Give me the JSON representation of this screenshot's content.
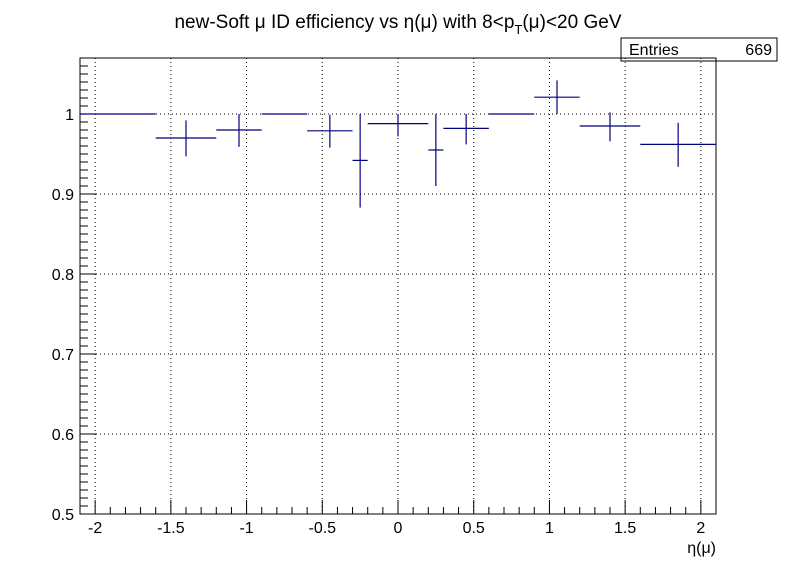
{
  "stats_box": {
    "label": "Entries",
    "value": "669"
  },
  "chart_data": {
    "type": "scatter",
    "style": "error-bars",
    "title_parts": {
      "prefix": "new-Soft μ ID efficiency vs η(μ) with 8<p",
      "subscript": "T",
      "suffix": "(μ)<20 GeV"
    },
    "xlabel": "η(μ)",
    "ylabel": "",
    "xlim": [
      -2.1,
      2.1
    ],
    "ylim": [
      0.5,
      1.07
    ],
    "x_ticks": [
      -2,
      -1.5,
      -1,
      -0.5,
      0,
      0.5,
      1,
      1.5,
      2
    ],
    "x_tick_labels": [
      "-2",
      "-1.5",
      "-1",
      "-0.5",
      "0",
      "0.5",
      "1",
      "1.5",
      "2"
    ],
    "y_ticks": [
      0.5,
      0.6,
      0.7,
      0.8,
      0.9,
      1.0
    ],
    "y_tick_labels": [
      "0.5",
      "0.6",
      "0.7",
      "0.8",
      "0.9",
      "1"
    ],
    "grid": true,
    "color": "#000080",
    "points": [
      {
        "xlow": -2.1,
        "xhigh": -1.6,
        "y": 1.0,
        "ylow": 1.0,
        "yhigh": 1.0
      },
      {
        "xlow": -1.6,
        "xhigh": -1.2,
        "y": 0.97,
        "ylow": 0.947,
        "yhigh": 0.992
      },
      {
        "xlow": -1.2,
        "xhigh": -0.9,
        "y": 0.98,
        "ylow": 0.959,
        "yhigh": 1.0
      },
      {
        "xlow": -0.9,
        "xhigh": -0.6,
        "y": 1.0,
        "ylow": 1.0,
        "yhigh": 1.0
      },
      {
        "xlow": -0.6,
        "xhigh": -0.3,
        "y": 0.979,
        "ylow": 0.958,
        "yhigh": 0.999
      },
      {
        "xlow": -0.3,
        "xhigh": -0.2,
        "y": 0.942,
        "ylow": 0.883,
        "yhigh": 1.0
      },
      {
        "xlow": -0.2,
        "xhigh": 0.2,
        "y": 0.988,
        "ylow": 0.972,
        "yhigh": 1.0
      },
      {
        "xlow": 0.2,
        "xhigh": 0.3,
        "y": 0.955,
        "ylow": 0.91,
        "yhigh": 1.0
      },
      {
        "xlow": 0.3,
        "xhigh": 0.6,
        "y": 0.982,
        "ylow": 0.962,
        "yhigh": 1.0
      },
      {
        "xlow": 0.6,
        "xhigh": 0.9,
        "y": 1.0,
        "ylow": 1.0,
        "yhigh": 1.0
      },
      {
        "xlow": 0.9,
        "xhigh": 1.2,
        "y": 1.021,
        "ylow": 1.0,
        "yhigh": 1.042
      },
      {
        "xlow": 1.2,
        "xhigh": 1.6,
        "y": 0.985,
        "ylow": 0.966,
        "yhigh": 1.002
      },
      {
        "xlow": 1.6,
        "xhigh": 2.1,
        "y": 0.962,
        "ylow": 0.934,
        "yhigh": 0.989
      }
    ]
  }
}
